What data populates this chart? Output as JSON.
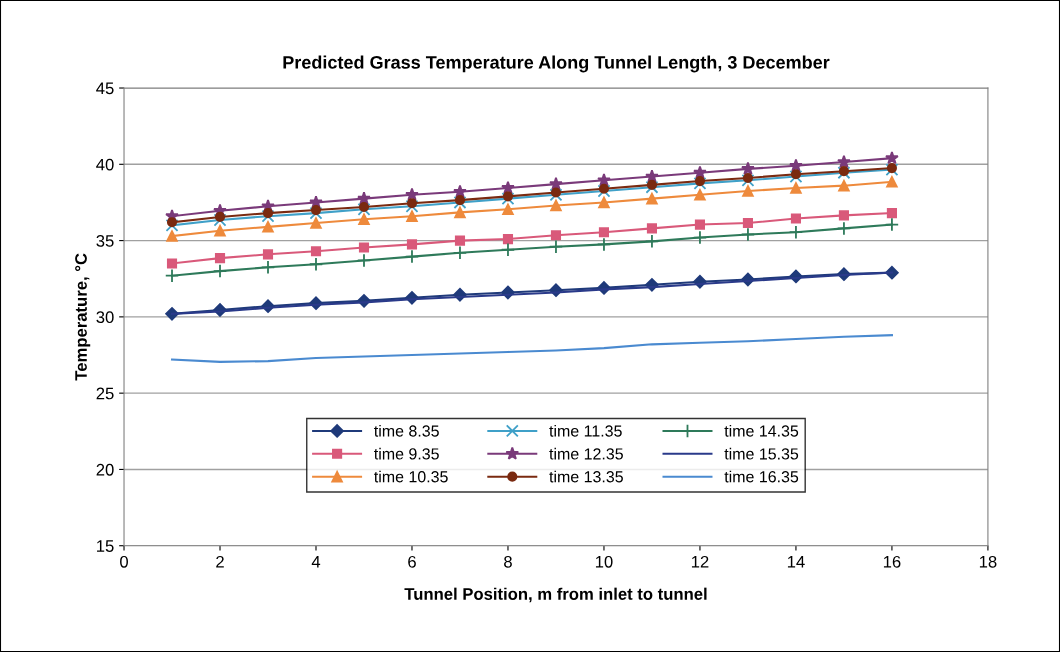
{
  "chart_data": {
    "type": "line",
    "title": "Predicted Grass Temperature Along Tunnel Length, 3 December",
    "xlabel": "Tunnel Position, m from inlet to tunnel",
    "ylabel": "Temperature, °C",
    "x": [
      1,
      2,
      3,
      4,
      5,
      6,
      7,
      8,
      9,
      10,
      11,
      12,
      13,
      14,
      15,
      16
    ],
    "xlim": [
      0,
      18
    ],
    "xticks": [
      0,
      2,
      4,
      6,
      8,
      10,
      12,
      14,
      16,
      18
    ],
    "ylim": [
      15,
      45
    ],
    "yticks": [
      15,
      20,
      25,
      30,
      35,
      40,
      45
    ],
    "grid": "y",
    "legend": "bottom",
    "series": [
      {
        "name": "time 8.35",
        "color": "#1f3a7a",
        "marker": "diamond",
        "values": [
          30.2,
          30.45,
          30.7,
          30.9,
          31.05,
          31.25,
          31.45,
          31.6,
          31.75,
          31.9,
          32.1,
          32.3,
          32.45,
          32.65,
          32.8,
          32.9
        ]
      },
      {
        "name": "time 9.35",
        "color": "#d9597a",
        "marker": "square",
        "values": [
          33.5,
          33.85,
          34.1,
          34.3,
          34.55,
          34.75,
          35.0,
          35.1,
          35.35,
          35.55,
          35.8,
          36.05,
          36.15,
          36.45,
          36.65,
          36.8
        ]
      },
      {
        "name": "time 10.35",
        "color": "#ee8a3c",
        "marker": "triangle",
        "values": [
          35.3,
          35.65,
          35.9,
          36.15,
          36.4,
          36.6,
          36.85,
          37.05,
          37.3,
          37.5,
          37.75,
          38.0,
          38.25,
          38.45,
          38.6,
          38.85
        ]
      },
      {
        "name": "time 11.35",
        "color": "#3fa0c8",
        "marker": "x",
        "values": [
          36.0,
          36.35,
          36.6,
          36.8,
          37.05,
          37.25,
          37.5,
          37.75,
          38.0,
          38.25,
          38.5,
          38.75,
          38.95,
          39.2,
          39.45,
          39.65
        ]
      },
      {
        "name": "time 12.35",
        "color": "#7a3a7a",
        "marker": "star",
        "values": [
          36.6,
          36.95,
          37.25,
          37.5,
          37.75,
          38.0,
          38.2,
          38.45,
          38.7,
          38.95,
          39.2,
          39.45,
          39.7,
          39.9,
          40.15,
          40.4
        ]
      },
      {
        "name": "time 13.35",
        "color": "#7a2a10",
        "marker": "circle",
        "values": [
          36.2,
          36.55,
          36.8,
          37.0,
          37.2,
          37.45,
          37.65,
          37.9,
          38.15,
          38.4,
          38.65,
          38.9,
          39.1,
          39.35,
          39.55,
          39.75
        ]
      },
      {
        "name": "time 14.35",
        "color": "#2e7a5a",
        "marker": "cross",
        "values": [
          32.7,
          33.0,
          33.25,
          33.45,
          33.7,
          33.95,
          34.2,
          34.4,
          34.6,
          34.75,
          34.95,
          35.2,
          35.4,
          35.55,
          35.8,
          36.05
        ]
      },
      {
        "name": "time 15.35",
        "color": "#2a3a8a",
        "marker": "none",
        "values": [
          30.2,
          30.35,
          30.6,
          30.8,
          30.95,
          31.15,
          31.3,
          31.45,
          31.6,
          31.8,
          31.95,
          32.15,
          32.35,
          32.55,
          32.75,
          32.9
        ]
      },
      {
        "name": "time 16.35",
        "color": "#4a8ad0",
        "marker": "none",
        "values": [
          27.2,
          27.05,
          27.1,
          27.3,
          27.4,
          27.5,
          27.6,
          27.7,
          27.8,
          27.95,
          28.2,
          28.3,
          28.4,
          28.55,
          28.7,
          28.8
        ]
      }
    ]
  }
}
